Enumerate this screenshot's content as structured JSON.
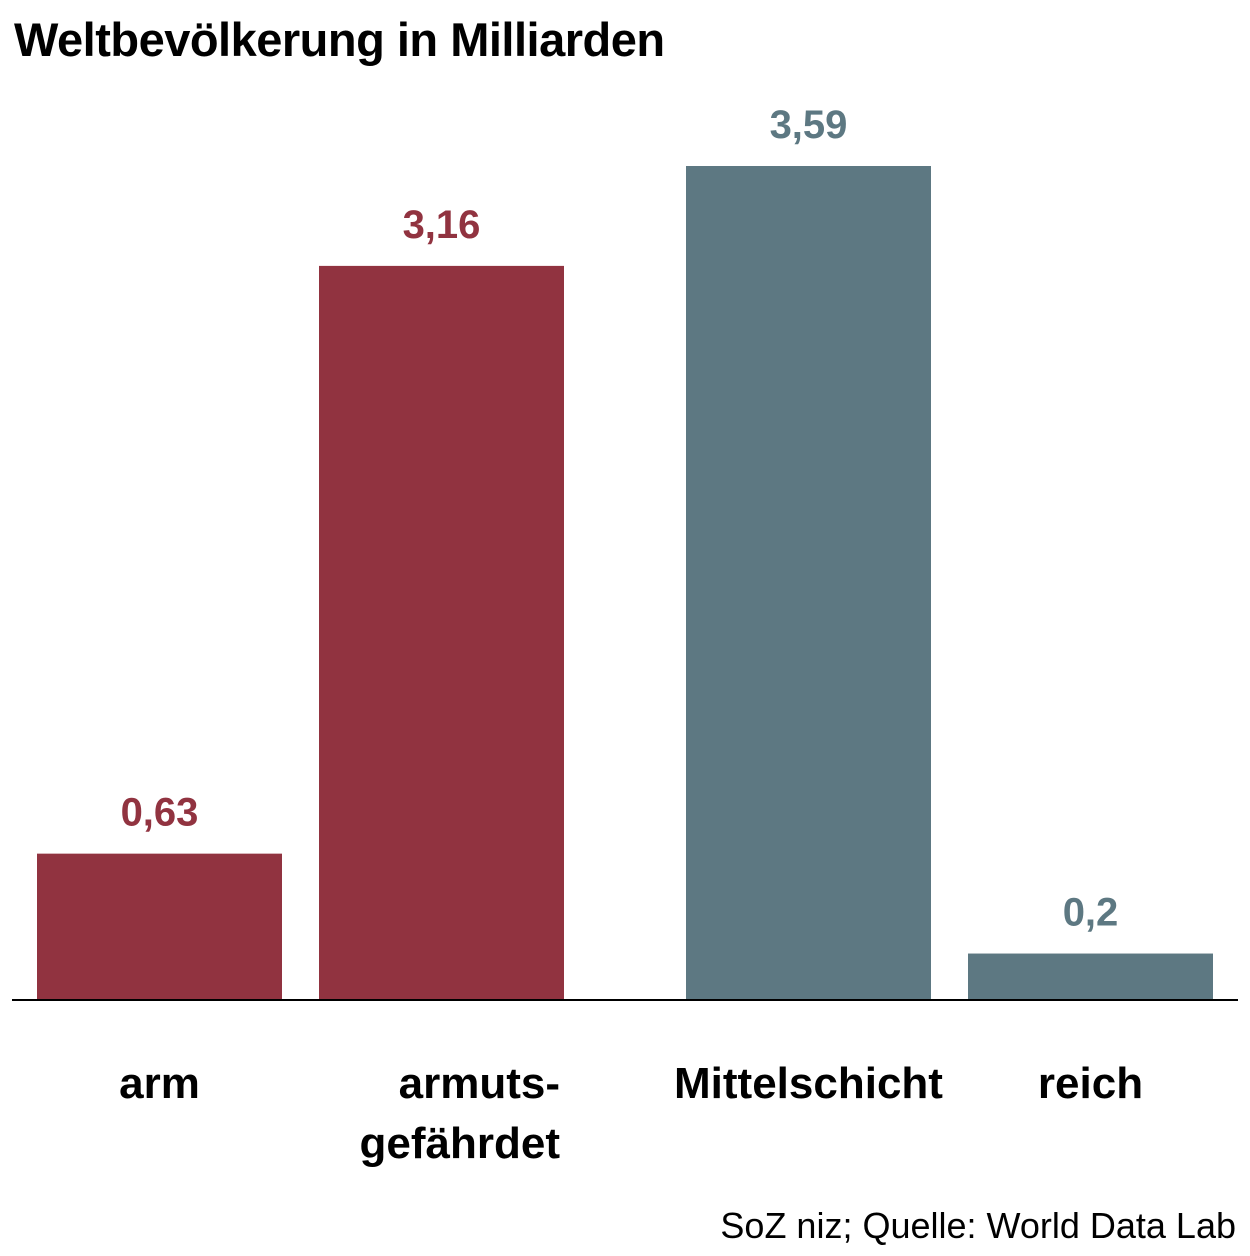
{
  "chart_data": {
    "type": "bar",
    "title": "Weltbevölkerung in Milliarden",
    "categories": [
      "arm",
      "armuts-\ngefährdet",
      "Mittelschicht",
      "reich"
    ],
    "values": [
      0.63,
      3.16,
      3.59,
      0.2
    ],
    "value_labels": [
      "0,63",
      "3,16",
      "3,59",
      "0,2"
    ],
    "colors": [
      "#913340",
      "#913340",
      "#5d7882",
      "#5d7882"
    ],
    "ylim": [
      0,
      3.59
    ],
    "grid": false,
    "legend": "none"
  },
  "source": "SoZ niz; Quelle: World Data Lab"
}
